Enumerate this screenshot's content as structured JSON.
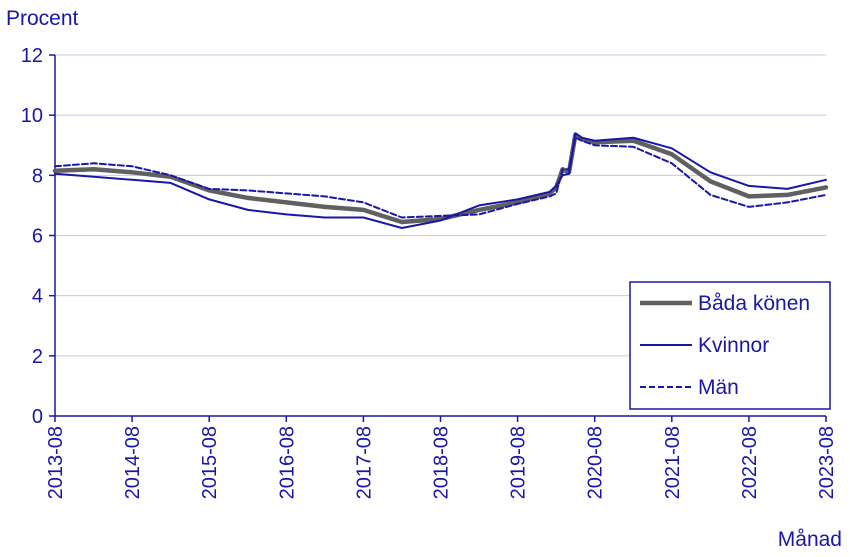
{
  "chart_data": {
    "type": "line",
    "ylabel": "Procent",
    "xlabel": "Månad",
    "ylim": [
      0,
      12
    ],
    "yticks": [
      0,
      2,
      4,
      6,
      8,
      10,
      12
    ],
    "xtick_labels": [
      "2013-08",
      "2014-08",
      "2015-08",
      "2016-08",
      "2017-08",
      "2018-08",
      "2019-08",
      "2020-08",
      "2021-08",
      "2022-08",
      "2023-08"
    ],
    "grid": "horizontal",
    "legend_position": "bottom-right",
    "colors": {
      "axis": "#1a17a6",
      "grid": "#c8c8e6",
      "both": "#606060",
      "women": "#1a17a6",
      "men": "#1a17a6"
    },
    "series": [
      {
        "name": "Båda könen",
        "style": "thick-gray",
        "x": [
          "2013-08",
          "2014-02",
          "2014-08",
          "2015-02",
          "2015-08",
          "2016-02",
          "2016-08",
          "2017-02",
          "2017-08",
          "2018-02",
          "2018-08",
          "2019-02",
          "2019-08",
          "2020-01",
          "2020-02",
          "2020-03",
          "2020-04",
          "2020-05",
          "2020-06",
          "2020-08",
          "2021-02",
          "2021-08",
          "2022-02",
          "2022-08",
          "2023-02",
          "2023-08"
        ],
        "values": [
          8.15,
          8.2,
          8.1,
          7.95,
          7.5,
          7.25,
          7.1,
          6.95,
          6.85,
          6.45,
          6.55,
          6.85,
          7.1,
          7.4,
          7.6,
          8.2,
          8.1,
          9.35,
          9.2,
          9.1,
          9.15,
          8.7,
          7.8,
          7.3,
          7.35,
          7.6
        ]
      },
      {
        "name": "Kvinnor",
        "style": "thin-solid",
        "x": [
          "2013-08",
          "2014-02",
          "2014-08",
          "2015-02",
          "2015-08",
          "2016-02",
          "2016-08",
          "2017-02",
          "2017-08",
          "2018-02",
          "2018-08",
          "2019-02",
          "2019-08",
          "2020-01",
          "2020-02",
          "2020-03",
          "2020-04",
          "2020-05",
          "2020-06",
          "2020-08",
          "2021-02",
          "2021-08",
          "2022-02",
          "2022-08",
          "2023-02",
          "2023-08"
        ],
        "values": [
          8.05,
          7.95,
          7.85,
          7.75,
          7.2,
          6.85,
          6.7,
          6.6,
          6.6,
          6.25,
          6.5,
          7.0,
          7.2,
          7.45,
          7.65,
          8.0,
          8.05,
          9.4,
          9.25,
          9.15,
          9.25,
          8.9,
          8.1,
          7.65,
          7.55,
          7.85
        ]
      },
      {
        "name": "Män",
        "style": "dashed",
        "x": [
          "2013-08",
          "2014-02",
          "2014-08",
          "2015-02",
          "2015-08",
          "2016-02",
          "2016-08",
          "2017-02",
          "2017-08",
          "2018-02",
          "2018-08",
          "2019-02",
          "2019-08",
          "2020-01",
          "2020-02",
          "2020-03",
          "2020-04",
          "2020-05",
          "2020-06",
          "2020-08",
          "2021-02",
          "2021-08",
          "2022-02",
          "2022-08",
          "2023-02",
          "2023-08"
        ],
        "values": [
          8.3,
          8.4,
          8.3,
          8.0,
          7.55,
          7.5,
          7.4,
          7.3,
          7.1,
          6.6,
          6.65,
          6.7,
          7.05,
          7.3,
          7.4,
          8.2,
          8.2,
          9.25,
          9.15,
          9.0,
          8.95,
          8.4,
          7.35,
          6.95,
          7.1,
          7.35
        ]
      }
    ]
  }
}
